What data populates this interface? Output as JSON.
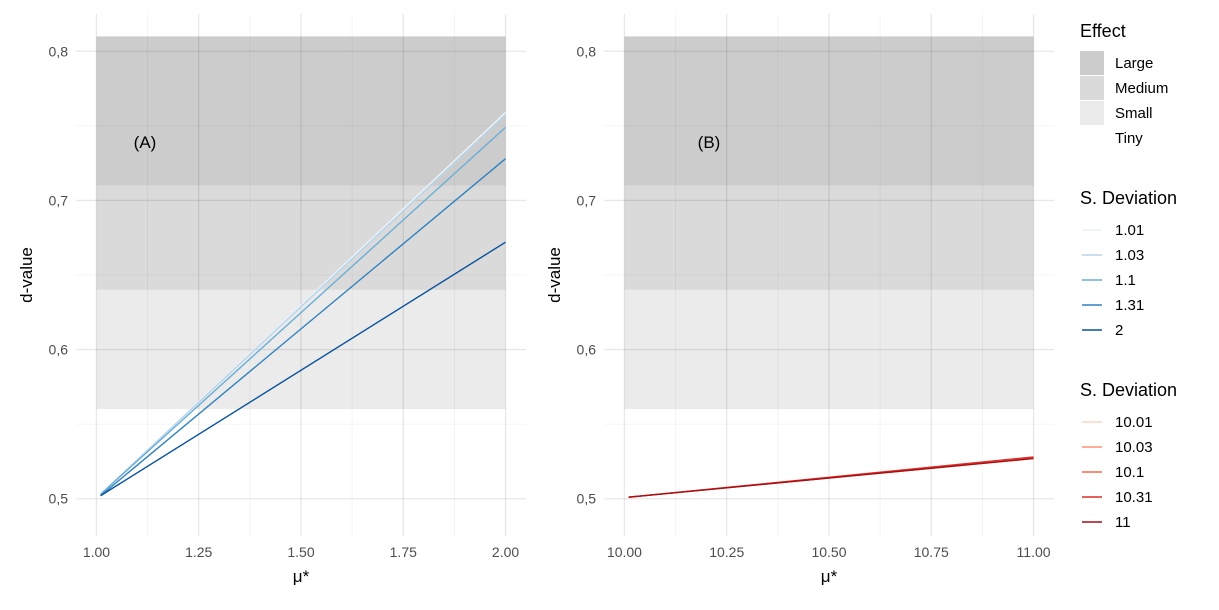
{
  "chart_data": [
    {
      "type": "line",
      "annotation": "(A)",
      "xlabel": "μ*",
      "ylabel": "d-value",
      "xlim": [
        0.95,
        2.05
      ],
      "ylim": [
        0.475,
        0.825
      ],
      "x_ticks": [
        {
          "value": 1.0,
          "label": "1.00"
        },
        {
          "value": 1.25,
          "label": "1.25"
        },
        {
          "value": 1.5,
          "label": "1.50"
        },
        {
          "value": 1.75,
          "label": "1.75"
        },
        {
          "value": 2.0,
          "label": "2.00"
        }
      ],
      "y_ticks": [
        {
          "value": 0.5,
          "label": "0,5"
        },
        {
          "value": 0.6,
          "label": "0,6"
        },
        {
          "value": 0.7,
          "label": "0,7"
        },
        {
          "value": 0.8,
          "label": "0,8"
        }
      ],
      "bands_x": [
        1.0,
        2.0
      ],
      "bands": [
        {
          "effect": "Large",
          "from": 0.71,
          "to": 0.81,
          "color": "#cccccc"
        },
        {
          "effect": "Medium",
          "from": 0.64,
          "to": 0.71,
          "color": "#dadada"
        },
        {
          "effect": "Small",
          "from": 0.56,
          "to": 0.64,
          "color": "#ebebeb"
        },
        {
          "effect": "Tiny",
          "from": 0.475,
          "to": 0.56,
          "color": "#ffffff"
        }
      ],
      "series": [
        {
          "name": "1.01",
          "color": "#eaf2fa",
          "points": [
            [
              1.01,
              0.503
            ],
            [
              2.0,
              0.759
            ]
          ]
        },
        {
          "name": "1.03",
          "color": "#b7d4ea",
          "points": [
            [
              1.01,
              0.503
            ],
            [
              2.0,
              0.757
            ]
          ]
        },
        {
          "name": "1.1",
          "color": "#6baed6",
          "points": [
            [
              1.01,
              0.503
            ],
            [
              2.0,
              0.749
            ]
          ]
        },
        {
          "name": "1.31",
          "color": "#3182bd",
          "points": [
            [
              1.01,
              0.502
            ],
            [
              2.0,
              0.728
            ]
          ]
        },
        {
          "name": "2",
          "color": "#08519c",
          "points": [
            [
              1.01,
              0.502
            ],
            [
              2.0,
              0.672
            ]
          ]
        }
      ]
    },
    {
      "type": "line",
      "annotation": "(B)",
      "xlabel": "μ*",
      "ylabel": "d-value",
      "xlim": [
        9.95,
        11.05
      ],
      "ylim": [
        0.475,
        0.825
      ],
      "x_ticks": [
        {
          "value": 10.0,
          "label": "10.00"
        },
        {
          "value": 10.25,
          "label": "10.25"
        },
        {
          "value": 10.5,
          "label": "10.50"
        },
        {
          "value": 10.75,
          "label": "10.75"
        },
        {
          "value": 11.0,
          "label": "11.00"
        }
      ],
      "y_ticks": [
        {
          "value": 0.5,
          "label": "0,5"
        },
        {
          "value": 0.6,
          "label": "0,6"
        },
        {
          "value": 0.7,
          "label": "0,7"
        },
        {
          "value": 0.8,
          "label": "0,8"
        }
      ],
      "bands_x": [
        10.0,
        11.0
      ],
      "bands": [
        {
          "effect": "Large",
          "from": 0.71,
          "to": 0.81,
          "color": "#cccccc"
        },
        {
          "effect": "Medium",
          "from": 0.64,
          "to": 0.71,
          "color": "#dadada"
        },
        {
          "effect": "Small",
          "from": 0.56,
          "to": 0.64,
          "color": "#ebebeb"
        },
        {
          "effect": "Tiny",
          "from": 0.475,
          "to": 0.56,
          "color": "#ffffff"
        }
      ],
      "series": [
        {
          "name": "10.01",
          "color": "#fdd5c2",
          "points": [
            [
              10.01,
              0.501
            ],
            [
              11.0,
              0.527
            ]
          ]
        },
        {
          "name": "10.03",
          "color": "#fc9272",
          "points": [
            [
              10.01,
              0.501
            ],
            [
              11.0,
              0.527
            ]
          ]
        },
        {
          "name": "10.1",
          "color": "#fb6a4a",
          "points": [
            [
              10.01,
              0.501
            ],
            [
              11.0,
              0.527
            ]
          ]
        },
        {
          "name": "10.31",
          "color": "#de2d26",
          "points": [
            [
              10.01,
              0.501
            ],
            [
              11.0,
              0.528
            ]
          ]
        },
        {
          "name": "11",
          "color": "#a50f15",
          "points": [
            [
              10.01,
              0.501
            ],
            [
              11.0,
              0.527
            ]
          ]
        }
      ]
    }
  ],
  "legend": {
    "effect": {
      "title": "Effect",
      "items": [
        {
          "label": "Large",
          "color": "#cccccc"
        },
        {
          "label": "Medium",
          "color": "#dadada"
        },
        {
          "label": "Small",
          "color": "#ebebeb"
        },
        {
          "label": "Tiny",
          "color": "#ffffff"
        }
      ]
    },
    "sd_blue": {
      "title": "S. Deviation",
      "items": [
        {
          "label": "1.01",
          "color": "#eaf2fa"
        },
        {
          "label": "1.03",
          "color": "#b7d4ea"
        },
        {
          "label": "1.1",
          "color": "#6baed6"
        },
        {
          "label": "1.31",
          "color": "#3182bd"
        },
        {
          "label": "2",
          "color": "#08519c"
        }
      ]
    },
    "sd_red": {
      "title": "S. Deviation",
      "items": [
        {
          "label": "10.01",
          "color": "#fdd5c2"
        },
        {
          "label": "10.03",
          "color": "#fc9272"
        },
        {
          "label": "10.1",
          "color": "#fb6a4a"
        },
        {
          "label": "10.31",
          "color": "#de2d26"
        },
        {
          "label": "11",
          "color": "#a50f15"
        }
      ]
    }
  }
}
